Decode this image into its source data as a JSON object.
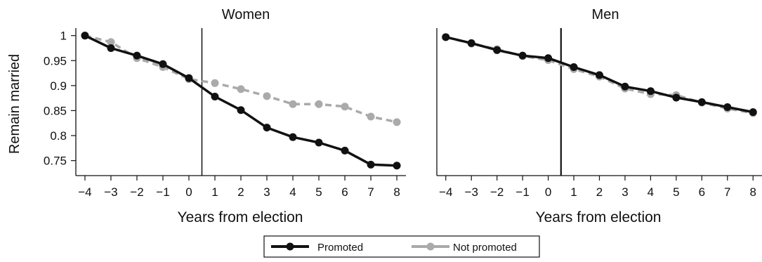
{
  "legend": {
    "promoted_label": "Promoted",
    "not_promoted_label": "Not promoted"
  },
  "colors": {
    "promoted": "#111111",
    "not_promoted": "#aaaaaa"
  },
  "chart_data": [
    {
      "type": "line",
      "title": "Women",
      "xlabel": "Years from election",
      "ylabel": "Remain married",
      "x": [
        -4,
        -3,
        -2,
        -1,
        0,
        1,
        2,
        3,
        4,
        5,
        6,
        7,
        8
      ],
      "xticks": [
        "−4",
        "−3",
        "−2",
        "−1",
        "0",
        "1",
        "2",
        "3",
        "4",
        "5",
        "6",
        "7",
        "8"
      ],
      "yticks": [
        "1",
        "0.95",
        "0.9",
        "0.85",
        "0.8",
        "0.75"
      ],
      "ytick_values": [
        1,
        0.95,
        0.9,
        0.85,
        0.8,
        0.75
      ],
      "xlim": [
        -4.35,
        8.35
      ],
      "ylim": [
        0.72,
        1.015
      ],
      "election_line_x": 0.5,
      "grid": false,
      "legend_position": "bottom",
      "series": [
        {
          "name": "Promoted",
          "values": [
            1.0,
            0.975,
            0.96,
            0.943,
            0.915,
            0.878,
            0.851,
            0.816,
            0.797,
            0.786,
            0.77,
            0.742,
            0.74
          ]
        },
        {
          "name": "Not promoted",
          "values": [
            1.0,
            0.987,
            0.955,
            0.937,
            0.913,
            0.905,
            0.893,
            0.879,
            0.863,
            0.863,
            0.858,
            0.838,
            0.827
          ]
        }
      ]
    },
    {
      "type": "line",
      "title": "Men",
      "xlabel": "Years from election",
      "ylabel": "",
      "x": [
        -4,
        -3,
        -2,
        -1,
        0,
        1,
        2,
        3,
        4,
        5,
        6,
        7,
        8
      ],
      "xticks": [
        "−4",
        "−3",
        "−2",
        "−1",
        "0",
        "1",
        "2",
        "3",
        "4",
        "5",
        "6",
        "7",
        "8"
      ],
      "yticks": [],
      "ytick_values": [],
      "xlim": [
        -4.35,
        8.35
      ],
      "ylim": [
        0.72,
        1.015
      ],
      "election_line_x": 0.5,
      "grid": false,
      "legend_position": "bottom",
      "series": [
        {
          "name": "Promoted",
          "values": [
            0.997,
            0.985,
            0.971,
            0.96,
            0.955,
            0.937,
            0.921,
            0.898,
            0.889,
            0.876,
            0.867,
            0.857,
            0.847
          ]
        },
        {
          "name": "Not promoted",
          "values": [
            0.997,
            0.984,
            0.973,
            0.959,
            0.951,
            0.933,
            0.918,
            0.894,
            0.883,
            0.881,
            0.866,
            0.854,
            0.845
          ]
        }
      ]
    }
  ]
}
